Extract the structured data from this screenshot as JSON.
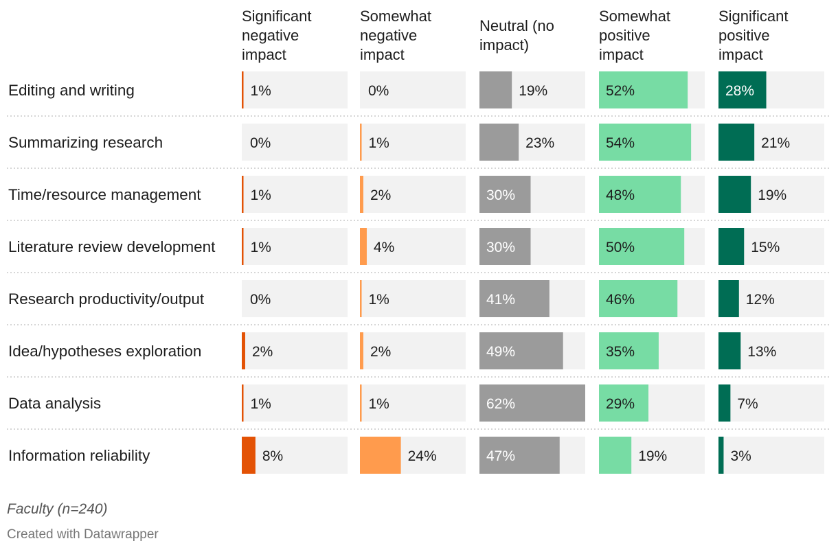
{
  "chart_data": {
    "type": "bar",
    "layout": "small-multiple columns",
    "columns": [
      "Significant negative impact",
      "Somewhat negative impact",
      "Neutral (no impact)",
      "Somewhat positive impact",
      "Significant positive impact"
    ],
    "categories": [
      "Editing and writing",
      "Summarizing research",
      "Time/resource management",
      "Literature review development",
      "Research productivity/output",
      "Idea/hypotheses exploration",
      "Data analysis",
      "Information reliability"
    ],
    "series": [
      {
        "name": "Significant negative impact",
        "color": "#e35205",
        "values": [
          1,
          0,
          1,
          1,
          0,
          2,
          1,
          8
        ]
      },
      {
        "name": "Somewhat negative impact",
        "color": "#ff9b4d",
        "values": [
          0,
          1,
          2,
          4,
          1,
          2,
          1,
          24
        ]
      },
      {
        "name": "Neutral (no impact)",
        "color": "#9b9b9b",
        "values": [
          19,
          23,
          30,
          30,
          41,
          49,
          62,
          47
        ]
      },
      {
        "name": "Somewhat positive impact",
        "color": "#77dca4",
        "values": [
          52,
          54,
          48,
          50,
          46,
          35,
          29,
          19
        ]
      },
      {
        "name": "Significant positive impact",
        "color": "#006d54",
        "values": [
          28,
          21,
          19,
          15,
          12,
          13,
          7,
          3
        ]
      }
    ],
    "value_suffix": "%",
    "xlim": [
      0,
      62
    ],
    "background_color": "#f2f2f2",
    "grid": false
  },
  "footer": {
    "note": "Faculty (n=240)",
    "credit": "Created with Datawrapper"
  }
}
